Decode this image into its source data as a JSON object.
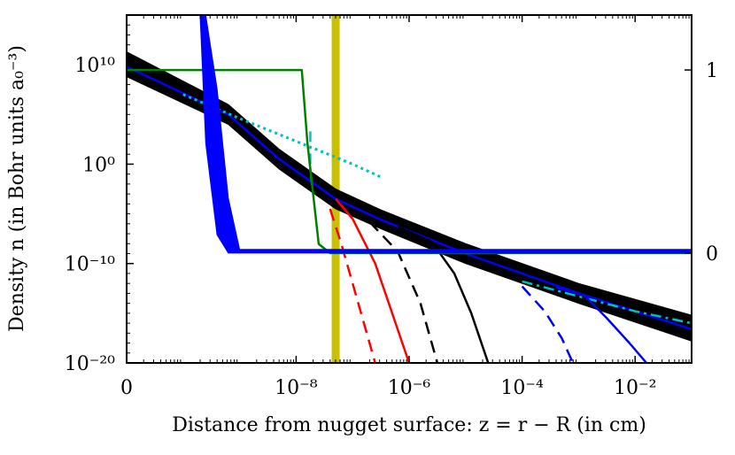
{
  "chart_data": {
    "type": "line",
    "title": "",
    "xlabel": "Distance from nugget surface: z = r − R (in cm)",
    "ylabel": "Density n (in Bohr units a₀⁻³)",
    "x_scale": "log-with-zero",
    "y_scale": "log",
    "xlim_log10": [
      -11.0,
      -1.0
    ],
    "ylim_log10": [
      -20,
      15
    ],
    "x_ticks": [
      {
        "value": "0",
        "label": "0"
      },
      {
        "value": -8,
        "label": "10⁻⁸"
      },
      {
        "value": -6,
        "label": "10⁻⁶"
      },
      {
        "value": -4,
        "label": "10⁻⁴"
      },
      {
        "value": -2,
        "label": "10⁻²"
      }
    ],
    "y_ticks": [
      {
        "value": 10,
        "label": "10¹⁰"
      },
      {
        "value": 0,
        "label": "10⁰"
      },
      {
        "value": -10,
        "label": "10⁻¹⁰"
      },
      {
        "value": -20,
        "label": "10⁻²⁰"
      }
    ],
    "right_axis": {
      "ticks": [
        {
          "value": 1,
          "label": "1"
        },
        {
          "value": 0,
          "label": "0"
        }
      ],
      "range": [
        -0.6,
        1.3
      ]
    },
    "vertical_band": {
      "name": "transition-region",
      "x_log10": -7.3,
      "color": "#c8c000"
    },
    "series": [
      {
        "name": "envelope-band",
        "color": "#000000",
        "style": "band",
        "x": [
          -11,
          -9.2,
          -8.3,
          -7.3,
          -6.5,
          -5,
          -3,
          -1
        ],
        "y_low": [
          8.8,
          4.0,
          -0.5,
          -4.5,
          -6.5,
          -10,
          -14,
          -17.8
        ],
        "y_high": [
          11.3,
          6.0,
          1.5,
          -2.5,
          -4.6,
          -8,
          -12,
          -15.2
        ]
      },
      {
        "name": "total-density",
        "color": "#0000ff",
        "style": "solid",
        "x": [
          -11,
          -9.2,
          -8.3,
          -7.3,
          -6.5,
          -5,
          -3,
          -1
        ],
        "y": [
          9.8,
          5.0,
          0.5,
          -3.5,
          -5.6,
          -9,
          -13,
          -16.6
        ]
      },
      {
        "name": "fit-left",
        "color": "#00c0c0",
        "style": "dotted",
        "x": [
          -10,
          -9,
          -8,
          -7,
          -6.5
        ],
        "y": [
          7.0,
          4.6,
          2.3,
          0.0,
          -1.3
        ]
      },
      {
        "name": "fit-vertical",
        "color": "#00c0c0",
        "style": "dashdot",
        "x": [
          -7.75,
          -7.75,
          -7.72
        ],
        "y": [
          3.3,
          -0.7,
          -2.1
        ]
      },
      {
        "name": "fit-right",
        "color": "#00c0c0",
        "style": "dashdot",
        "x": [
          -4,
          -3,
          -2,
          -1
        ],
        "y": [
          -11.8,
          -13.3,
          -14.8,
          -16.0
        ]
      },
      {
        "name": "red-solid",
        "color": "#ff0000",
        "style": "solid",
        "x": [
          -7.3,
          -7.0,
          -6.6,
          -6.3,
          -6.0
        ],
        "y": [
          -3.5,
          -5.5,
          -10,
          -15,
          -20
        ]
      },
      {
        "name": "red-dashed",
        "color": "#ff0000",
        "style": "dashed",
        "x": [
          -7.4,
          -7.2,
          -6.9,
          -6.6
        ],
        "y": [
          -4.5,
          -8,
          -14,
          -20
        ]
      },
      {
        "name": "black-solid",
        "color": "#000000",
        "style": "solid",
        "x": [
          -6.2,
          -5.6,
          -5.2,
          -4.9,
          -4.6
        ],
        "y": [
          -6.3,
          -7.8,
          -11,
          -15,
          -20
        ]
      },
      {
        "name": "black-dashed",
        "color": "#000000",
        "style": "dashed",
        "x": [
          -6.7,
          -6.2,
          -5.8,
          -5.5
        ],
        "y": [
          -5.8,
          -8.8,
          -14,
          -20
        ]
      },
      {
        "name": "blue-solid",
        "color": "#0000ff",
        "style": "solid",
        "x": [
          -3.4,
          -2.9,
          -2.5,
          -2.1,
          -1.8
        ],
        "y": [
          -12.4,
          -13.2,
          -15.5,
          -18,
          -20
        ]
      },
      {
        "name": "blue-dashed",
        "color": "#0000ff",
        "style": "dashed",
        "x": [
          -4.0,
          -3.6,
          -3.3,
          -3.1
        ],
        "y": [
          -12.3,
          -14.8,
          -17.5,
          -20
        ]
      },
      {
        "name": "green-step",
        "color": "#008000",
        "style": "solid",
        "axis": "right",
        "x": [
          -11,
          -7.9,
          -7.8,
          -7.6,
          -7.4,
          -1
        ],
        "y": [
          1,
          1,
          0.6,
          0.05,
          0,
          0
        ]
      },
      {
        "name": "blue-step-band",
        "color": "#0000ff",
        "style": "band",
        "axis": "right",
        "x": [
          -9.7,
          -9.6,
          -9.4,
          -9.2,
          -9.0,
          -1
        ],
        "y_low": [
          1.35,
          0.6,
          0.1,
          0.0,
          0.0,
          0.0
        ],
        "y_high": [
          1.35,
          1.35,
          0.9,
          0.3,
          0.02,
          0.02
        ]
      }
    ]
  }
}
